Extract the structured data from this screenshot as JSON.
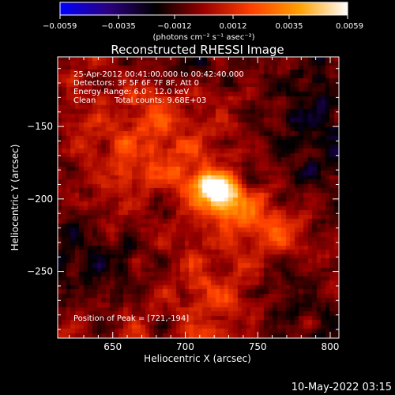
{
  "chart_data": {
    "type": "heatmap",
    "title": "Reconstructed RHESSI Image",
    "xlabel": "Heliocentric X (arcsec)",
    "ylabel": "Heliocentric Y (arcsec)",
    "xlim": [
      612,
      806
    ],
    "ylim": [
      -296,
      -102
    ],
    "x_ticks": [
      650,
      700,
      750,
      800
    ],
    "y_ticks": [
      -150,
      -200,
      -250
    ],
    "colorbar": {
      "label": "(photons cm⁻² s⁻¹ asec⁻²)",
      "range": [
        -0.0059,
        0.0059
      ],
      "tick_labels": [
        "-0.0059",
        "-0.0035",
        "-0.0012",
        "0.0012",
        "0.0035",
        "0.0059"
      ],
      "tick_values": [
        -0.0059,
        -0.0035,
        -0.0012,
        0.0012,
        0.0035,
        0.0059
      ],
      "colormap_stops": [
        "#0000ff",
        "#2b0080",
        "#000000",
        "#9a0000",
        "#ff4000",
        "#ffa000",
        "#ffffff"
      ]
    },
    "annotations": [
      "25-Apr-2012 00:41:00.000 to 00:42:40.000",
      "Detectors: 3F 5F 6F 7F 8F, Att 0",
      "Energy Range: 6.0 - 12.0 keV",
      "Clean",
      "Total counts: 9.68E+03"
    ],
    "peak_label": "Position of Peak = [721,-194]",
    "peak": {
      "x": 721,
      "y": -194,
      "value": 0.0059
    },
    "sources": [
      {
        "x": 721,
        "y": -194,
        "sx": 12,
        "sy": 8,
        "angle_deg": -25,
        "amp": 0.0062
      },
      {
        "x": 748,
        "y": -215,
        "sx": 32,
        "sy": 11,
        "angle_deg": -30,
        "amp": 0.0026
      },
      {
        "x": 676,
        "y": -160,
        "sx": 26,
        "sy": 30,
        "angle_deg": 0,
        "amp": 0.0017
      },
      {
        "x": 722,
        "y": -268,
        "sx": 22,
        "sy": 26,
        "angle_deg": 0,
        "amp": 0.0013
      },
      {
        "x": 650,
        "y": -205,
        "sx": 18,
        "sy": 22,
        "angle_deg": 0,
        "amp": 0.0011
      }
    ],
    "negative_regions": [
      {
        "x": 640,
        "y": -230,
        "sx": 30,
        "sy": 30,
        "amp": -0.0022
      },
      {
        "x": 790,
        "y": -150,
        "sx": 25,
        "sy": 40,
        "amp": -0.002
      },
      {
        "x": 700,
        "y": -105,
        "sx": 30,
        "sy": 15,
        "amp": -0.0016
      },
      {
        "x": 785,
        "y": -270,
        "sx": 28,
        "sy": 30,
        "amp": -0.0013
      }
    ],
    "grid": false
  },
  "footer": {
    "date": "10-May-2022 03:15"
  }
}
